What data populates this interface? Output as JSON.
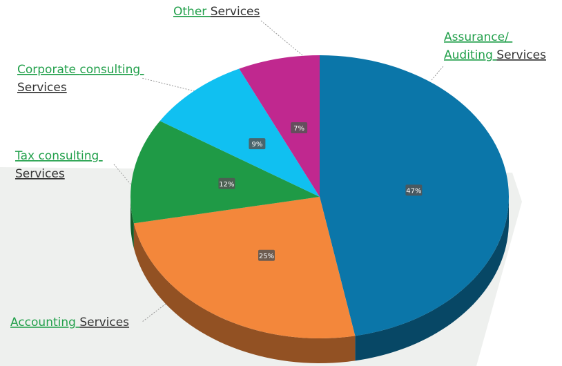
{
  "chart_data": {
    "type": "pie",
    "categories": [
      "Assurance/ Auditing Services",
      "Accounting Services",
      "Tax consulting Services",
      "Corporate consulting Services",
      "Other Services"
    ],
    "values": [
      47,
      25,
      12,
      9,
      7
    ],
    "value_labels": [
      "47%",
      "25%",
      "12%",
      "9%",
      "7%"
    ],
    "colors": [
      "#0b76a9",
      "#f3873b",
      "#1f9a46",
      "#10c0f1",
      "#c0288f"
    ]
  }
}
